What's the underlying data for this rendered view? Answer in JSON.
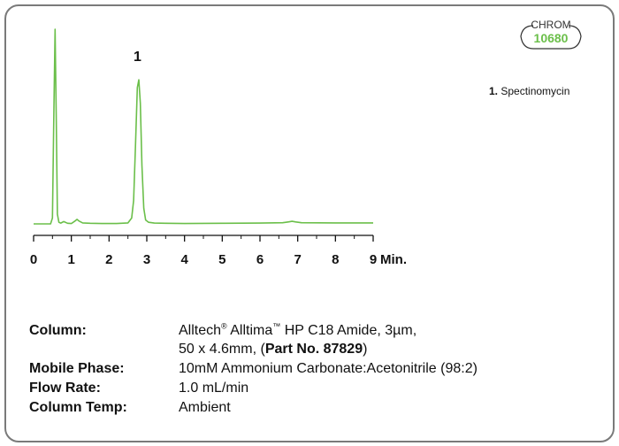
{
  "badge": {
    "label": "CHROM",
    "number": "10680"
  },
  "legend": [
    {
      "index": "1.",
      "name": "Spectinomycin"
    }
  ],
  "conditions": {
    "column": {
      "label": "Column:",
      "brand": "Alltech",
      "reg_mark": "®",
      "product": "Alltima",
      "tm_mark": "™",
      "line1_rest": "HP C18 Amide, 3µm,",
      "line2_pre": "50 x 4.6mm, (",
      "part_no": "Part No. 87829",
      "line2_post": ")"
    },
    "mobile_phase": {
      "label": "Mobile Phase:",
      "value": "10mM Ammonium Carbonate:Acetonitrile (98:2)"
    },
    "flow_rate": {
      "label": "Flow Rate:",
      "value": "1.0 mL/min"
    },
    "column_temp": {
      "label": "Column Temp:",
      "value": "Ambient"
    }
  },
  "chart_data": {
    "type": "line",
    "color": "#6bbf4a",
    "xlabel": "Min.",
    "xlim": [
      0,
      9
    ],
    "x_ticks": [
      "0",
      "1",
      "2",
      "3",
      "4",
      "5",
      "6",
      "7",
      "8",
      "9"
    ],
    "ylim": [
      0,
      100
    ],
    "series": [
      {
        "x": [
          0.0,
          0.45,
          0.5,
          0.54,
          0.57,
          0.6,
          0.63,
          0.67,
          0.72,
          0.8,
          0.9,
          1.0,
          1.1,
          1.15,
          1.2,
          1.3,
          1.5,
          1.8,
          2.2,
          2.5,
          2.6,
          2.65,
          2.7,
          2.75,
          2.79,
          2.83,
          2.87,
          2.92,
          2.97,
          3.05,
          3.2,
          3.5,
          4.0,
          5.0,
          6.0,
          6.6,
          6.75,
          6.85,
          6.95,
          7.1,
          8.0,
          9.0
        ],
        "y": [
          0.0,
          0.0,
          3.0,
          60.0,
          100.0,
          55.0,
          5.0,
          0.8,
          0.4,
          1.2,
          0.3,
          0.2,
          1.5,
          2.3,
          1.5,
          0.5,
          0.3,
          0.2,
          0.2,
          0.5,
          3.0,
          12.0,
          40.0,
          70.0,
          74.0,
          62.0,
          30.0,
          8.0,
          2.0,
          0.8,
          0.4,
          0.3,
          0.2,
          0.3,
          0.4,
          0.6,
          1.0,
          1.3,
          1.0,
          0.6,
          0.5,
          0.5
        ]
      }
    ],
    "annotations": [
      {
        "text": "1",
        "x": 2.8
      }
    ]
  }
}
